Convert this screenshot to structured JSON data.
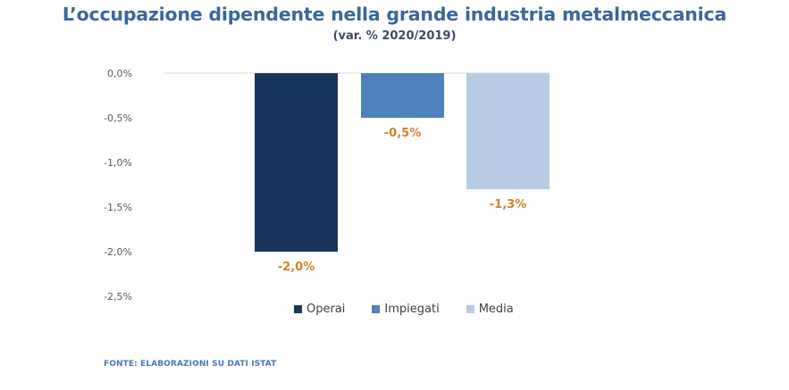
{
  "chart_data": {
    "type": "bar",
    "title": "L’occupazione dipendente nella grande industria metalmeccanica",
    "subtitle": "(var. % 2020/2019)",
    "xlabel": "",
    "ylabel": "",
    "categories": [
      "Operai",
      "Impiegati",
      "Media"
    ],
    "values": [
      -2.0,
      -0.5,
      -1.3
    ],
    "data_labels": [
      "-2,0%",
      "-0,5%",
      "-1,3%"
    ],
    "colors": [
      "#1b365d",
      "#4f81bd",
      "#b8cce4"
    ],
    "label_color": "#d4802a",
    "ylim": [
      -2.5,
      0.0
    ],
    "yticks": [
      0.0,
      -0.5,
      -1.0,
      -1.5,
      -2.0,
      -2.5
    ],
    "ytick_labels": [
      "0,0%",
      "-0,5%",
      "-1,0%",
      "-1,5%",
      "-2,0%",
      "-2,5%"
    ],
    "grid": false,
    "legend": {
      "position": "bottom",
      "entries": [
        "Operai",
        "Impiegati",
        "Media"
      ]
    },
    "source": "FONTE: ELABORAZIONI SU DATI ISTAT"
  }
}
